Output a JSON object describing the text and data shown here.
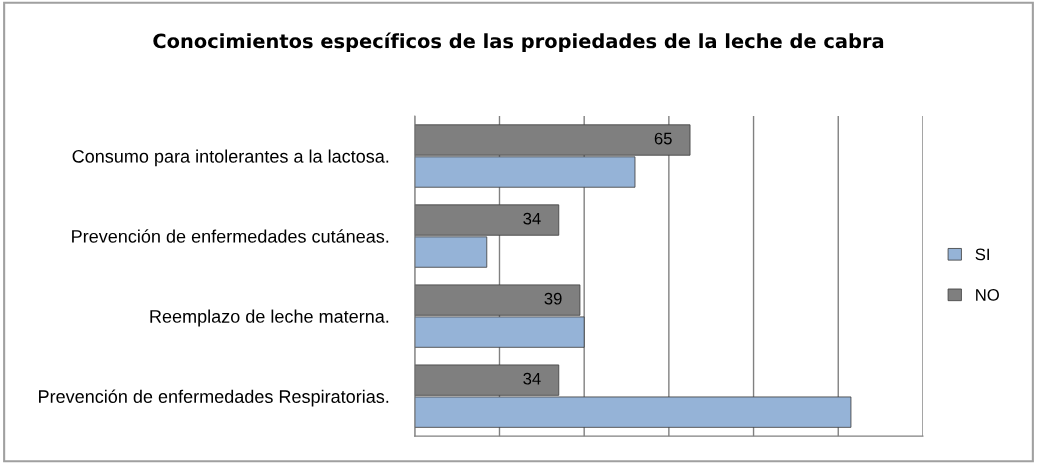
{
  "chart_data": {
    "type": "bar",
    "orientation": "horizontal",
    "title": "Conocimientos específicos de las propiedades de la leche de cabra",
    "categories": [
      "Consumo para intolerantes a la lactosa.",
      "Prevención de enfermedades cutáneas.",
      "Reemplazo de leche materna.",
      "Prevención de enfermedades Respiratorias."
    ],
    "series": [
      {
        "name": "NO",
        "color": "#7f7f7f",
        "values": [
          65,
          34,
          39,
          34
        ],
        "value_labels": [
          "65",
          "34",
          "39",
          "34"
        ]
      },
      {
        "name": "SI",
        "color": "#95b3d7",
        "values": [
          52,
          17,
          40,
          103
        ]
      }
    ],
    "xlim": [
      0,
      120
    ],
    "xticks": [
      {
        "value": 0,
        "label": null
      },
      {
        "value": 20,
        "label": null
      },
      {
        "value": 40,
        "label": null
      },
      {
        "value": 60,
        "label": null
      },
      {
        "value": 80,
        "label": null
      },
      {
        "value": 100,
        "label": null
      },
      {
        "value": 120,
        "label": null
      }
    ],
    "tick_labels": "y",
    "grid": "x",
    "legend": "right"
  }
}
